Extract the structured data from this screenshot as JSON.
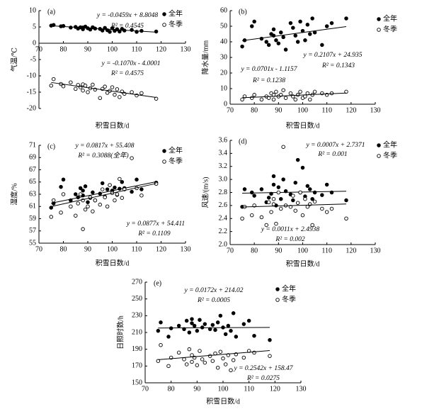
{
  "chart_data": [
    {
      "type": "scatter",
      "label": "(a)",
      "x_label": "积雪日数/d",
      "y_label": "气温/℃",
      "xlim": [
        70,
        130
      ],
      "xticks": [
        70,
        80,
        90,
        100,
        110,
        120,
        130
      ],
      "ylim": [
        -20,
        10
      ],
      "yticks": [
        -20,
        -15,
        -10,
        -5,
        0,
        5,
        10
      ],
      "x": [
        75,
        76,
        79,
        80,
        83,
        85,
        86,
        87,
        88,
        88,
        89,
        90,
        91,
        92,
        93,
        95,
        96,
        97,
        98,
        99,
        100,
        101,
        102,
        103,
        104,
        105,
        108,
        110,
        112,
        118
      ],
      "series": [
        {
          "name": "全年",
          "color": "#000000",
          "marker": "filled",
          "values": [
            5.4,
            5.6,
            5.2,
            5.3,
            4.8,
            5.0,
            4.5,
            4.9,
            4.3,
            4.8,
            5.1,
            4.6,
            4.2,
            4.9,
            4.5,
            4.4,
            3.9,
            4.7,
            4.0,
            3.5,
            4.6,
            3.8,
            4.3,
            3.6,
            4.4,
            3.9,
            4.1,
            3.5,
            3.8,
            3.6
          ],
          "fit": {
            "slope": -0.0459,
            "intercept": 8.8048,
            "equation": "y = -0.0459x + 8.8048",
            "r2": "R² = 0.4545"
          }
        },
        {
          "name": "冬季",
          "color": "#000000",
          "marker": "hollow",
          "values": [
            -13.0,
            -11.0,
            -12.5,
            -13.2,
            -12.0,
            -14.0,
            -12.8,
            -13.5,
            -12.6,
            -14.5,
            -13.0,
            -15.0,
            -13.8,
            -12.7,
            -14.2,
            -16.8,
            -14.0,
            -13.3,
            -15.2,
            -14.6,
            -13.5,
            -15.8,
            -14.1,
            -16.5,
            -14.8,
            -15.5,
            -15.0,
            -16.0,
            -15.3,
            -17.0
          ],
          "fit": {
            "slope": -0.107,
            "intercept": -4.0001,
            "equation": "y = -0.1070x - 4.0001",
            "r2": "R² = 0.4575"
          }
        }
      ]
    },
    {
      "type": "scatter",
      "label": "(b)",
      "x_label": "积雪日数/d",
      "y_label": "降水量/mm",
      "xlim": [
        70,
        130
      ],
      "xticks": [
        70,
        80,
        90,
        100,
        110,
        120,
        130
      ],
      "ylim": [
        0,
        60
      ],
      "yticks": [
        0,
        10,
        20,
        30,
        40,
        50,
        60
      ],
      "x": [
        75,
        76,
        79,
        80,
        83,
        85,
        86,
        87,
        88,
        88,
        89,
        90,
        91,
        92,
        93,
        95,
        96,
        97,
        98,
        99,
        100,
        101,
        102,
        103,
        104,
        105,
        108,
        110,
        112,
        118
      ],
      "series": [
        {
          "name": "全年",
          "color": "#000000",
          "marker": "filled",
          "values": [
            37,
            41,
            50,
            53,
            42,
            40,
            38,
            45,
            44,
            48,
            41,
            39,
            46,
            43,
            35,
            52,
            49,
            44,
            40,
            53,
            47,
            41,
            51,
            45,
            55,
            46,
            38,
            50,
            52,
            55
          ],
          "fit": {
            "slope": 0.2107,
            "intercept": 24.935,
            "equation": "y = 0.2107x + 24.935",
            "r2": "R² = 0.1343"
          }
        },
        {
          "name": "冬季",
          "color": "#000000",
          "marker": "hollow",
          "values": [
            3,
            5,
            4,
            6,
            3,
            5,
            4,
            7,
            6,
            3,
            8,
            5,
            6,
            9,
            4,
            7,
            5,
            3,
            6,
            8,
            4,
            5,
            7,
            3,
            6,
            8,
            7,
            6,
            7,
            8
          ],
          "fit": {
            "slope": 0.0701,
            "intercept": -1.1157,
            "equation": "y = 0.0701x - 1.1157",
            "r2": "R² = 0.1238"
          }
        }
      ]
    },
    {
      "type": "scatter",
      "label": "(c)",
      "x_label": "积雪日数/d",
      "y_label": "湿度/%",
      "xlim": [
        70,
        130
      ],
      "xticks": [
        70,
        80,
        90,
        100,
        110,
        120,
        130
      ],
      "ylim": [
        55,
        71
      ],
      "yticks": [
        55,
        57,
        59,
        61,
        63,
        65,
        67,
        69,
        71
      ],
      "x": [
        75,
        76,
        79,
        80,
        83,
        85,
        86,
        87,
        88,
        88,
        89,
        90,
        91,
        92,
        93,
        95,
        96,
        97,
        98,
        99,
        100,
        101,
        102,
        103,
        104,
        105,
        108,
        110,
        112,
        118
      ],
      "series": [
        {
          "name": "全年",
          "color": "#000000",
          "marker": "filled",
          "values": [
            60.8,
            61.5,
            64.2,
            65.4,
            62.0,
            63.0,
            62.5,
            64.0,
            62.8,
            63.6,
            64.3,
            61.7,
            62.4,
            63.3,
            62.0,
            63.1,
            64.8,
            62.6,
            63.8,
            64.5,
            63.6,
            64.1,
            62.9,
            63.9,
            65.0,
            64.0,
            63.4,
            65.4,
            63.8,
            64.9
          ],
          "fit": {
            "slope": 0.0817,
            "intercept": 55.408,
            "equation": "y = 0.0817x + 55.408",
            "r2": "R² = 0.3088(全年)"
          }
        },
        {
          "name": "冬季",
          "color": "#000000",
          "marker": "hollow",
          "values": [
            59.3,
            62.0,
            60.0,
            63.0,
            61.0,
            59.5,
            61.5,
            63.0,
            62.0,
            57.3,
            60.5,
            61.0,
            62.5,
            60.2,
            62.0,
            61.3,
            63.8,
            62.5,
            61.0,
            64.5,
            63.2,
            62.0,
            63.0,
            65.5,
            62.4,
            63.8,
            68.9,
            64.0,
            62.8,
            64.7
          ],
          "fit": {
            "slope": 0.0877,
            "intercept": 54.411,
            "equation": "y = 0.0877x + 54.411",
            "r2": "R² = 0.1109"
          }
        }
      ]
    },
    {
      "type": "scatter",
      "label": "(d)",
      "x_label": "积雪日数/d",
      "y_label": "风速/(m/s)",
      "xlim": [
        70,
        130
      ],
      "xticks": [
        70,
        80,
        90,
        100,
        110,
        120,
        130
      ],
      "ylim": [
        2,
        3.6
      ],
      "yticks": [
        {
          "value": 2,
          "label": "2.0"
        },
        2.2,
        2.4,
        2.6,
        2.8,
        {
          "value": 3,
          "label": "3.0"
        },
        3.2,
        3.4,
        3.6
      ],
      "x": [
        75,
        76,
        79,
        80,
        83,
        85,
        86,
        87,
        88,
        88,
        89,
        90,
        91,
        92,
        93,
        95,
        96,
        97,
        98,
        99,
        100,
        101,
        102,
        103,
        104,
        105,
        108,
        110,
        112,
        118
      ],
      "series": [
        {
          "name": "全年",
          "color": "#000000",
          "marker": "filled",
          "values": [
            2.58,
            2.85,
            2.8,
            2.75,
            2.85,
            2.65,
            2.72,
            2.78,
            2.92,
            3.05,
            2.6,
            2.88,
            2.7,
            3.0,
            2.82,
            2.77,
            2.68,
            2.95,
            3.3,
            2.8,
            3.18,
            2.74,
            2.9,
            2.85,
            2.7,
            2.8,
            2.76,
            2.92,
            2.8,
            2.68
          ],
          "fit": {
            "slope": 0.0007,
            "intercept": 2.7371,
            "equation": "y = 0.0007x + 2.7371",
            "r2": "R² = 0.001"
          }
        },
        {
          "name": "冬季",
          "color": "#000000",
          "marker": "hollow",
          "values": [
            2.4,
            2.58,
            2.45,
            2.6,
            2.42,
            2.3,
            2.65,
            2.5,
            2.7,
            2.62,
            2.32,
            2.8,
            2.55,
            3.5,
            2.6,
            2.58,
            2.75,
            2.52,
            2.64,
            2.8,
            2.45,
            2.7,
            2.58,
            2.62,
            2.3,
            2.66,
            2.55,
            2.5,
            2.55,
            2.4
          ],
          "fit": {
            "slope": 0.0011,
            "intercept": 2.4938,
            "equation": "y = 0.0011x + 2.4938",
            "r2": "R² = 0.002"
          }
        }
      ]
    },
    {
      "type": "scatter",
      "label": "(e)",
      "x_label": "积雪日数/d",
      "y_label": "日照时数/h",
      "xlim": [
        70,
        130
      ],
      "xticks": [
        70,
        80,
        90,
        100,
        110,
        120,
        130
      ],
      "ylim": [
        150,
        270
      ],
      "yticks": [
        150,
        170,
        190,
        210,
        230,
        250,
        270
      ],
      "x": [
        75,
        76,
        79,
        80,
        83,
        85,
        86,
        87,
        88,
        88,
        89,
        90,
        91,
        92,
        93,
        95,
        96,
        97,
        98,
        99,
        100,
        101,
        102,
        103,
        104,
        105,
        108,
        110,
        112,
        118
      ],
      "series": [
        {
          "name": "全年",
          "color": "#000000",
          "marker": "filled",
          "values": [
            212,
            222,
            205,
            215,
            218,
            214,
            224,
            210,
            221,
            226,
            218,
            212,
            225,
            216,
            220,
            214,
            219,
            213,
            222,
            230,
            216,
            208,
            218,
            212,
            233,
            205,
            220,
            224,
            206,
            201
          ],
          "fit": {
            "slope": 0.0172,
            "intercept": 214.02,
            "equation": "y = 0.0172x + 214.02",
            "r2": "R² = 0.0005"
          }
        },
        {
          "name": "冬季",
          "color": "#000000",
          "marker": "hollow",
          "values": [
            176,
            195,
            170,
            180,
            186,
            178,
            172,
            190,
            183,
            175,
            180,
            171,
            188,
            178,
            174,
            182,
            176,
            185,
            168,
            187,
            179,
            172,
            183,
            165,
            177,
            184,
            180,
            188,
            186,
            182
          ],
          "fit": {
            "slope": 0.2542,
            "intercept": 158.47,
            "equation": "y = 0.2542x + 158.47",
            "r2": "R² = 0.0275"
          }
        }
      ]
    }
  ]
}
